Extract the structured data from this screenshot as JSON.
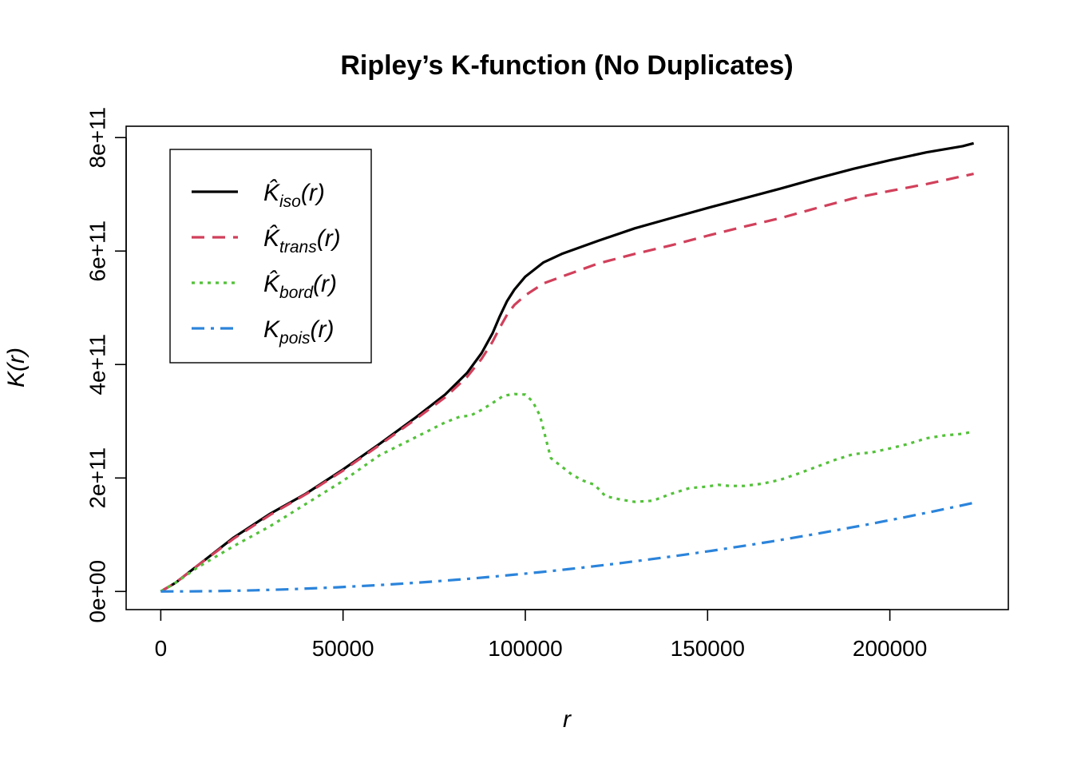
{
  "chart_data": {
    "type": "line",
    "title": "Ripley’s K-function (No Duplicates)",
    "xlabel": "r",
    "ylabel": "K(r)",
    "xlim": [
      -9500,
      232500
    ],
    "ylim": [
      -32000000000.0,
      820000000000.0
    ],
    "x_ticks": [
      0,
      50000,
      100000,
      150000,
      200000
    ],
    "x_tick_labels": [
      "0",
      "50000",
      "100000",
      "150000",
      "200000"
    ],
    "y_ticks": [
      0,
      200000000000.0,
      400000000000.0,
      600000000000.0,
      800000000000.0
    ],
    "y_tick_labels": [
      "0e+00",
      "2e+11",
      "4e+11",
      "6e+11",
      "8e+11"
    ],
    "legend_position": "top-left",
    "series": [
      {
        "name": "ĈK_iso(r)",
        "legend_main": "K̂",
        "legend_sub": "iso",
        "legend_tail": "(r)",
        "color": "#000000",
        "line_style": "solid",
        "x": [
          0,
          4000,
          10000,
          20000,
          30000,
          40000,
          50000,
          60000,
          70000,
          78000,
          84000,
          88000,
          91000,
          93000,
          95000,
          97000,
          100000,
          105000,
          110000,
          120000,
          130000,
          140000,
          150000,
          160000,
          170000,
          180000,
          190000,
          200000,
          210000,
          220000,
          223000
        ],
        "y": [
          0,
          15000000000.0,
          45000000000.0,
          95000000000.0,
          137000000000.0,
          173000000000.0,
          215000000000.0,
          260000000000.0,
          307000000000.0,
          347000000000.0,
          385000000000.0,
          420000000000.0,
          455000000000.0,
          485000000000.0,
          512000000000.0,
          532000000000.0,
          555000000000.0,
          580000000000.0,
          595000000000.0,
          618000000000.0,
          640000000000.0,
          658000000000.0,
          676000000000.0,
          693000000000.0,
          710000000000.0,
          728000000000.0,
          745000000000.0,
          760000000000.0,
          774000000000.0,
          785000000000.0,
          790000000000.0
        ]
      },
      {
        "name": "K̂_trans(r)",
        "legend_main": "K̂",
        "legend_sub": "trans",
        "legend_tail": "(r)",
        "color": "#d1405b",
        "line_style": "dashed",
        "x": [
          0,
          4000,
          10000,
          20000,
          30000,
          40000,
          50000,
          60000,
          70000,
          78000,
          84000,
          88000,
          91000,
          93000,
          95000,
          97000,
          100000,
          105000,
          110000,
          120000,
          130000,
          140000,
          150000,
          160000,
          170000,
          180000,
          190000,
          200000,
          210000,
          220000,
          223000
        ],
        "y": [
          0,
          15000000000.0,
          45000000000.0,
          93000000000.0,
          135000000000.0,
          172000000000.0,
          213000000000.0,
          258000000000.0,
          304000000000.0,
          342000000000.0,
          378000000000.0,
          410000000000.0,
          440000000000.0,
          465000000000.0,
          488000000000.0,
          505000000000.0,
          522000000000.0,
          543000000000.0,
          555000000000.0,
          578000000000.0,
          595000000000.0,
          610000000000.0,
          627000000000.0,
          643000000000.0,
          658000000000.0,
          676000000000.0,
          693000000000.0,
          706000000000.0,
          718000000000.0,
          732000000000.0,
          736000000000.0
        ]
      },
      {
        "name": "K̂_bord(r)",
        "legend_main": "K̂",
        "legend_sub": "bord",
        "legend_tail": "(r)",
        "color": "#53c13a",
        "line_style": "dotted",
        "x": [
          0,
          4000,
          10000,
          20000,
          30000,
          40000,
          50000,
          60000,
          70000,
          78000,
          82000,
          85000,
          88000,
          91000,
          94000,
          97000,
          100000,
          102000,
          104000,
          106000,
          107000,
          110000,
          113000,
          116000,
          119000,
          122000,
          126000,
          130000,
          135000,
          140000,
          145000,
          150000,
          153000,
          156000,
          160000,
          165000,
          170000,
          175000,
          180000,
          185000,
          190000,
          195000,
          200000,
          205000,
          210000,
          215000,
          220000,
          223000
        ],
        "y": [
          0,
          15000000000.0,
          42000000000.0,
          80000000000.0,
          115000000000.0,
          155000000000.0,
          195000000000.0,
          240000000000.0,
          272000000000.0,
          298000000000.0,
          308000000000.0,
          310000000000.0,
          320000000000.0,
          332000000000.0,
          345000000000.0,
          348000000000.0,
          347000000000.0,
          335000000000.0,
          310000000000.0,
          260000000000.0,
          235000000000.0,
          220000000000.0,
          205000000000.0,
          195000000000.0,
          188000000000.0,
          168000000000.0,
          162000000000.0,
          158000000000.0,
          160000000000.0,
          172000000000.0,
          182000000000.0,
          185000000000.0,
          188000000000.0,
          186000000000.0,
          186000000000.0,
          190000000000.0,
          197000000000.0,
          208000000000.0,
          220000000000.0,
          232000000000.0,
          242000000000.0,
          245000000000.0,
          252000000000.0,
          260000000000.0,
          270000000000.0,
          275000000000.0,
          278000000000.0,
          282000000000.0
        ]
      },
      {
        "name": "K_pois(r)",
        "legend_main": "K",
        "legend_sub": "pois",
        "legend_tail": "(r)",
        "color": "#2b84db",
        "line_style": "dashdot",
        "function": "pi*r^2",
        "x_range": [
          0,
          223000
        ]
      }
    ]
  }
}
